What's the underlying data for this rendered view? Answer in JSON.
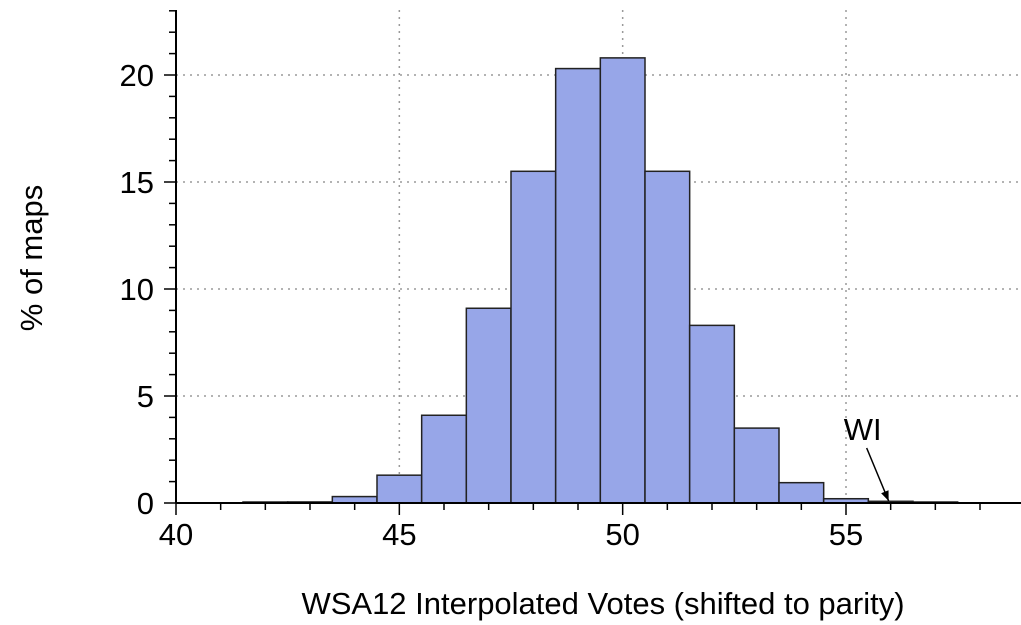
{
  "chart_data": {
    "type": "bar",
    "xlabel": "WSA12 Interpolated Votes (shifted to parity)",
    "ylabel": "% of maps",
    "xlim": [
      40,
      59
    ],
    "ylim": [
      0,
      23
    ],
    "x_ticks": [
      40,
      45,
      50,
      55
    ],
    "y_ticks": [
      0,
      5,
      10,
      15,
      20
    ],
    "grid": true,
    "bin_width": 1,
    "bars": [
      {
        "x0": 41.5,
        "x1": 42.5,
        "value": 0.02
      },
      {
        "x0": 42.5,
        "x1": 43.5,
        "value": 0.05
      },
      {
        "x0": 43.5,
        "x1": 44.5,
        "value": 0.3
      },
      {
        "x0": 44.5,
        "x1": 45.5,
        "value": 1.3
      },
      {
        "x0": 45.5,
        "x1": 46.5,
        "value": 4.1
      },
      {
        "x0": 46.5,
        "x1": 47.5,
        "value": 9.1
      },
      {
        "x0": 47.5,
        "x1": 48.5,
        "value": 15.5
      },
      {
        "x0": 48.5,
        "x1": 49.5,
        "value": 20.3
      },
      {
        "x0": 49.5,
        "x1": 50.5,
        "value": 20.8
      },
      {
        "x0": 50.5,
        "x1": 51.5,
        "value": 15.5
      },
      {
        "x0": 51.5,
        "x1": 52.5,
        "value": 8.3
      },
      {
        "x0": 52.5,
        "x1": 53.5,
        "value": 3.5
      },
      {
        "x0": 53.5,
        "x1": 54.5,
        "value": 0.95
      },
      {
        "x0": 54.5,
        "x1": 55.5,
        "value": 0.2
      },
      {
        "x0": 55.5,
        "x1": 56.5,
        "value": 0.08
      },
      {
        "x0": 56.5,
        "x1": 57.5,
        "value": 0.02
      }
    ],
    "annotations": [
      {
        "text": "WI",
        "x": 56.0,
        "y": 0.0
      }
    ],
    "colors": {
      "bar_fill": "#97a6e8",
      "bar_stroke": "#222222",
      "grid": "#9a9a9a",
      "axis": "#000000"
    }
  }
}
